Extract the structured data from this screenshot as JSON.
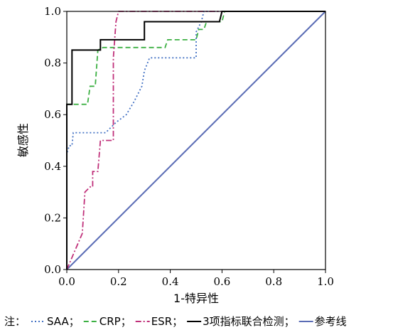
{
  "chart_data": {
    "type": "line",
    "title": "",
    "xlabel": "1-特异性",
    "ylabel": "敏感性",
    "xlim": [
      0,
      1
    ],
    "ylim": [
      0,
      1
    ],
    "x_ticks": [
      "0.0",
      "0.2",
      "0.4",
      "0.6",
      "0.8",
      "1.0"
    ],
    "y_ticks": [
      "0.0",
      "0.2",
      "0.4",
      "0.6",
      "0.8",
      "1.0"
    ],
    "grid": false,
    "legend_position": "bottom",
    "legend_prefix": "注：",
    "series": [
      {
        "name": "SAA",
        "color": "#4472c4",
        "dash": "dotted",
        "points": [
          [
            0,
            0
          ],
          [
            0,
            0.45
          ],
          [
            0.01,
            0.48
          ],
          [
            0.02,
            0.48
          ],
          [
            0.025,
            0.53
          ],
          [
            0.15,
            0.53
          ],
          [
            0.19,
            0.57
          ],
          [
            0.23,
            0.6
          ],
          [
            0.26,
            0.65
          ],
          [
            0.29,
            0.71
          ],
          [
            0.3,
            0.77
          ],
          [
            0.32,
            0.82
          ],
          [
            0.36,
            0.82
          ],
          [
            0.5,
            0.82
          ],
          [
            0.5,
            0.92
          ],
          [
            0.52,
            0.96
          ],
          [
            0.53,
            1.0
          ],
          [
            0.56,
            1.0
          ],
          [
            1.0,
            1.0
          ]
        ]
      },
      {
        "name": "CRP",
        "color": "#3cb043",
        "dash": "dashed",
        "points": [
          [
            0,
            0
          ],
          [
            0,
            0.64
          ],
          [
            0.02,
            0.64
          ],
          [
            0.08,
            0.64
          ],
          [
            0.09,
            0.71
          ],
          [
            0.11,
            0.71
          ],
          [
            0.12,
            0.85
          ],
          [
            0.14,
            0.86
          ],
          [
            0.38,
            0.86
          ],
          [
            0.39,
            0.89
          ],
          [
            0.48,
            0.89
          ],
          [
            0.5,
            0.89
          ],
          [
            0.51,
            0.93
          ],
          [
            0.53,
            0.93
          ],
          [
            0.54,
            0.96
          ],
          [
            0.6,
            0.96
          ],
          [
            0.61,
            1.0
          ],
          [
            1.0,
            1.0
          ]
        ]
      },
      {
        "name": "ESR",
        "color": "#c0307a",
        "dash": "dashdot",
        "points": [
          [
            0,
            0
          ],
          [
            0.06,
            0.14
          ],
          [
            0.07,
            0.3
          ],
          [
            0.09,
            0.32
          ],
          [
            0.1,
            0.32
          ],
          [
            0.1,
            0.38
          ],
          [
            0.12,
            0.38
          ],
          [
            0.13,
            0.5
          ],
          [
            0.17,
            0.5
          ],
          [
            0.18,
            0.5
          ],
          [
            0.18,
            0.82
          ],
          [
            0.19,
            0.96
          ],
          [
            0.2,
            1.0
          ],
          [
            1.0,
            1.0
          ]
        ]
      },
      {
        "name": "3项指标联合检测",
        "color": "#000000",
        "dash": "solid",
        "points": [
          [
            0,
            0
          ],
          [
            0,
            0.64
          ],
          [
            0.02,
            0.64
          ],
          [
            0.02,
            0.85
          ],
          [
            0.13,
            0.85
          ],
          [
            0.13,
            0.89
          ],
          [
            0.3,
            0.89
          ],
          [
            0.3,
            0.96
          ],
          [
            0.5,
            0.96
          ],
          [
            0.59,
            0.96
          ],
          [
            0.6,
            1.0
          ],
          [
            1.0,
            1.0
          ]
        ]
      },
      {
        "name": "参考线",
        "color": "#5a6cb5",
        "dash": "solid",
        "points": [
          [
            0,
            0
          ],
          [
            1,
            1
          ]
        ]
      }
    ]
  }
}
